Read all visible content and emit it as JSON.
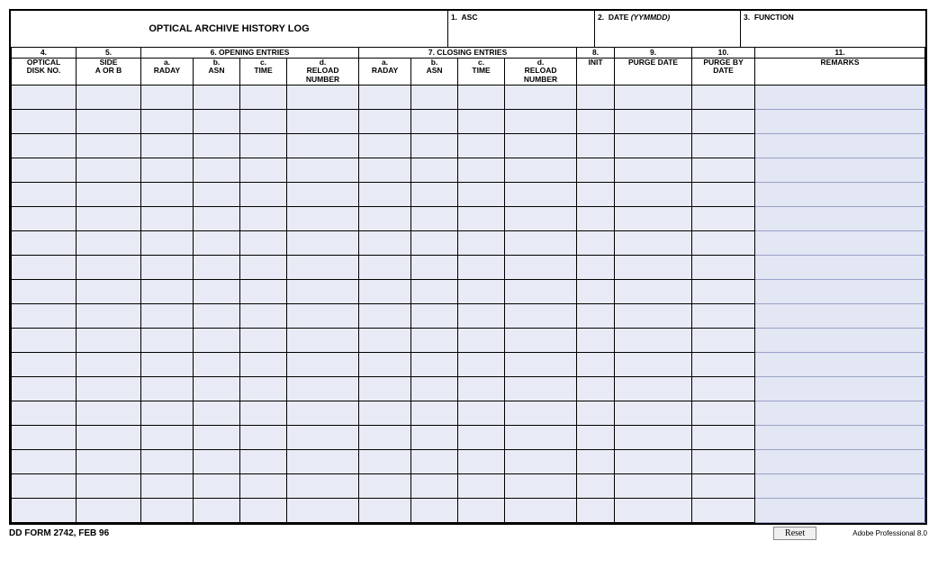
{
  "title": "OPTICAL ARCHIVE HISTORY LOG",
  "topFields": {
    "f1": {
      "num": "1.",
      "label": "ASC"
    },
    "f2": {
      "num": "2.",
      "label": "DATE",
      "paren": "(YYMMDD)"
    },
    "f3": {
      "num": "3.",
      "label": "FUNCTION"
    }
  },
  "headerTop": {
    "c4": "4.",
    "c5": "5.",
    "c6": "6.  OPENING ENTRIES",
    "c7": "7.  CLOSING ENTRIES",
    "c8": "8.",
    "c9": "9.",
    "c10": "10.",
    "c11": "11."
  },
  "headerSub": {
    "disk": "OPTICAL\nDISK NO.",
    "side": "SIDE\nA OR B",
    "a1": "a.\nRADAY",
    "b1": "b.\nASN",
    "c1": "c.\nTIME",
    "d1": "d.\nRELOAD\nNUMBER",
    "a2": "a.\nRADAY",
    "b2": "b.\nASN",
    "c2": "c.\nTIME",
    "d2": "d.\nRELOAD\nNUMBER",
    "init": "INIT",
    "purge": "PURGE DATE",
    "purgeby": "PURGE BY\nDATE",
    "remarks": "REMARKS"
  },
  "rowCount": 18,
  "footer": {
    "form": "DD FORM 2742, FEB 96",
    "reset": "Reset",
    "adobe": "Adobe Professional 8.0"
  },
  "colors": {
    "cellFill": "#e8ebf5",
    "remarksFill": "#e3e6f3"
  }
}
